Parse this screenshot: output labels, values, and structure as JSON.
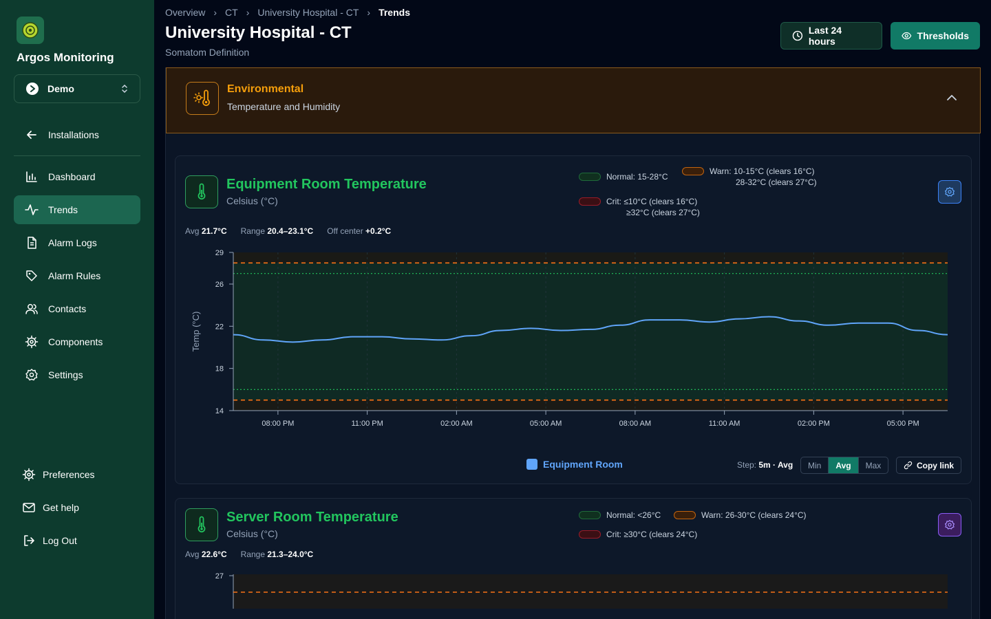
{
  "app": {
    "brand": "Argos Monitoring",
    "org": "Demo"
  },
  "sidebar": {
    "back": {
      "label": "Installations",
      "icon": "arrow-left-icon"
    },
    "items": [
      {
        "label": "Dashboard",
        "icon": "bar-chart-icon",
        "active": false
      },
      {
        "label": "Trends",
        "icon": "activity-icon",
        "active": true
      },
      {
        "label": "Alarm Logs",
        "icon": "file-text-icon",
        "active": false
      },
      {
        "label": "Alarm Rules",
        "icon": "tag-icon",
        "active": false
      },
      {
        "label": "Contacts",
        "icon": "users-icon",
        "active": false
      },
      {
        "label": "Components",
        "icon": "cog-icon",
        "active": false
      },
      {
        "label": "Settings",
        "icon": "settings-icon",
        "active": false
      }
    ],
    "footer": [
      {
        "label": "Preferences",
        "icon": "cog-icon"
      },
      {
        "label": "Get help",
        "icon": "mail-icon"
      },
      {
        "label": "Log Out",
        "icon": "log-out-icon"
      }
    ]
  },
  "breadcrumb": [
    "Overview",
    "CT",
    "University Hospital - CT",
    "Trends"
  ],
  "header": {
    "title": "University Hospital - CT",
    "subtitle": "Somatom Definition",
    "range_button": "Last 24 hours",
    "thresholds_button": "Thresholds"
  },
  "section": {
    "title": "Environmental",
    "subtitle": "Temperature and Humidity"
  },
  "colors": {
    "accent": "#117a66",
    "normal": "#22c55e",
    "warn": "#f97316",
    "crit": "#dc2626",
    "series": "#60a5fa"
  },
  "card1": {
    "title": "Equipment Room Temperature",
    "unit": "Celsius (°C)",
    "legend": {
      "normal": "Normal: 15-28°C",
      "warn_line1": "Warn: 10-15°C (clears 16°C)",
      "warn_line2": "28-32°C (clears 27°C)",
      "crit_line1": "Crit: ≤10°C (clears 16°C)",
      "crit_line2": "≥32°C (clears 27°C)"
    },
    "stats": {
      "avg_label": "Avg",
      "avg": "21.7°C",
      "range_label": "Range",
      "range": "20.4–23.1°C",
      "off_label": "Off center",
      "off": "+0.2°C"
    },
    "series_name": "Equipment Room",
    "step_label": "Step:",
    "step_value": "5m · Avg",
    "agg": [
      "Min",
      "Avg",
      "Max"
    ],
    "agg_selected": "Avg",
    "copy_link": "Copy link"
  },
  "card2": {
    "title": "Server Room Temperature",
    "unit": "Celsius (°C)",
    "legend": {
      "normal": "Normal: <26°C",
      "warn": "Warn: 26-30°C (clears 24°C)",
      "crit": "Crit: ≥30°C (clears 24°C)"
    },
    "stats": {
      "avg_label": "Avg",
      "avg": "22.6°C",
      "range_label": "Range",
      "range": "21.3–24.0°C"
    },
    "y_top_tick": "27"
  },
  "chart_data": [
    {
      "type": "line",
      "ylabel": "Temp (°C)",
      "ylim": [
        14,
        29
      ],
      "yticks": [
        14,
        18,
        22,
        26,
        29
      ],
      "xticks": [
        "08:00 PM",
        "11:00 PM",
        "02:00 AM",
        "05:00 AM",
        "08:00 AM",
        "11:00 AM",
        "02:00 PM",
        "05:00 PM"
      ],
      "thresholds": {
        "warn_high": 28,
        "normal_high_clear": 27,
        "normal_low_clear": 16,
        "warn_low": 15
      },
      "series": [
        {
          "name": "Equipment Room",
          "x_hours": [
            0,
            1,
            2,
            3,
            4,
            5,
            6,
            7,
            8,
            9,
            10,
            11,
            12,
            13,
            14,
            15,
            16,
            17,
            18,
            19,
            20,
            21,
            22,
            23,
            24
          ],
          "values": [
            21.2,
            20.7,
            20.5,
            20.7,
            21.0,
            21.0,
            20.8,
            20.7,
            21.1,
            21.6,
            21.8,
            21.6,
            21.7,
            22.1,
            22.6,
            22.6,
            22.4,
            22.7,
            22.9,
            22.5,
            22.1,
            22.3,
            22.3,
            21.6,
            21.2
          ]
        }
      ]
    },
    {
      "type": "line",
      "ylim_top": 27,
      "thresholds": {
        "warn_high": 26
      },
      "series": []
    }
  ]
}
